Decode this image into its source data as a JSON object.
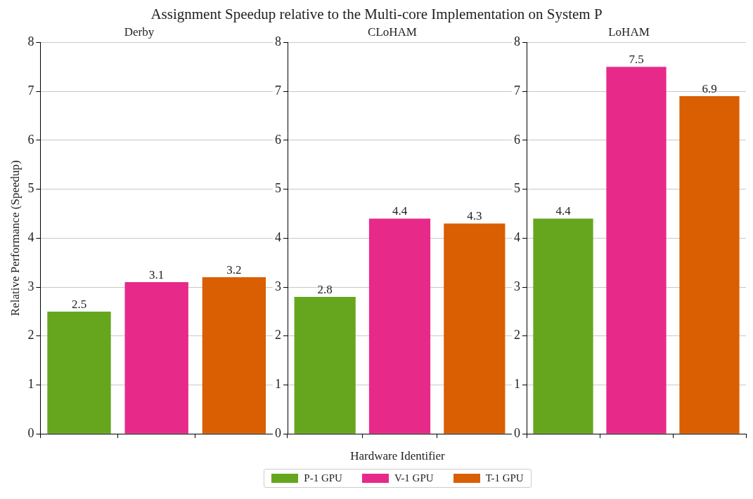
{
  "chart_data": [
    {
      "type": "bar",
      "title": "Assignment Speedup relative to the Multi-core Implementation on System P",
      "subtitle": "Derby",
      "ylabel": "Relative Performance (Speedup)",
      "categories": [
        null,
        null,
        null
      ],
      "series": [
        {
          "name": "P-1 GPU",
          "color": "#66a61e",
          "values": [
            2.5,
            null,
            null
          ]
        },
        {
          "name": "V-1 GPU",
          "color": "#e7298a",
          "values": [
            null,
            3.1,
            null
          ]
        },
        {
          "name": "T-1 GPU",
          "color": "#d95f02",
          "values": [
            null,
            null,
            3.2
          ]
        }
      ],
      "ylim": [
        0,
        8
      ],
      "yticks": [
        0,
        1,
        2,
        3,
        4,
        5,
        6,
        7,
        8
      ],
      "grid": "y",
      "data_labels": true,
      "tick_labels": "y",
      "legend": "bottom"
    },
    {
      "type": "bar",
      "subtitle": "CLoHAM",
      "xlabel": "Hardware Identifier",
      "categories": [
        null,
        null,
        null
      ],
      "series": [
        {
          "color": "#66a61e",
          "values": [
            2.8,
            null,
            null
          ]
        },
        {
          "color": "#e7298a",
          "values": [
            null,
            4.4,
            null
          ]
        },
        {
          "color": "#d95f02",
          "values": [
            null,
            null,
            4.3
          ]
        }
      ],
      "ylim": [
        0,
        8
      ],
      "yticks": [
        0,
        1,
        2,
        3,
        4,
        5,
        6,
        7,
        8
      ],
      "grid": "y",
      "data_labels": true,
      "tick_labels": "y"
    },
    {
      "type": "bar",
      "subtitle": "LoHAM",
      "categories": [
        null,
        null,
        null
      ],
      "series": [
        {
          "color": "#66a61e",
          "values": [
            4.4,
            null,
            null
          ]
        },
        {
          "color": "#e7298a",
          "values": [
            null,
            7.5,
            null
          ]
        },
        {
          "color": "#d95f02",
          "values": [
            null,
            null,
            6.9
          ]
        }
      ],
      "ylim": [
        0,
        8
      ],
      "yticks": [
        0,
        1,
        2,
        3,
        4,
        5,
        6,
        7,
        8
      ],
      "grid": "y",
      "data_labels": true,
      "tick_labels": "y"
    }
  ]
}
